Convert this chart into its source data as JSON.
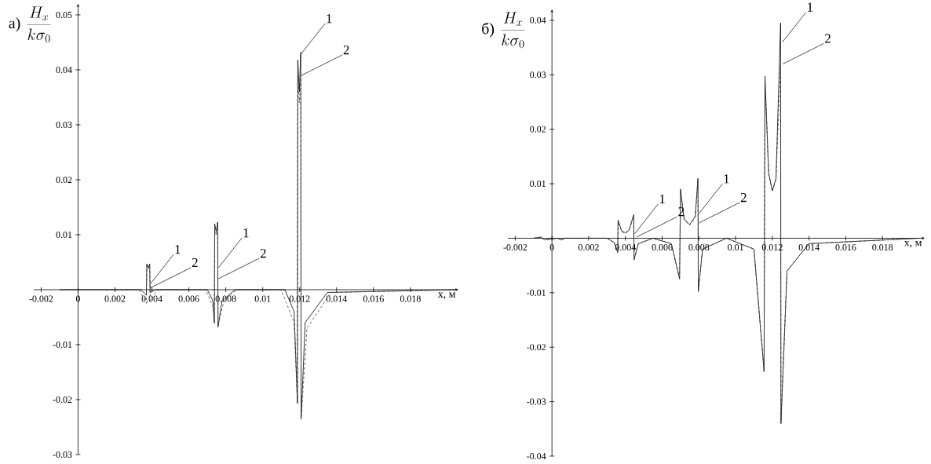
{
  "chart_data": [
    {
      "type": "line",
      "title": "а)",
      "ylabel": "\\frac{H_x}{k\\sigma_0}",
      "xlabel": "x, м",
      "xlim": [
        -0.0024,
        0.0206
      ],
      "ylim": [
        -0.03,
        0.052
      ],
      "xticks": [
        -0.002,
        0,
        0.002,
        0.004,
        0.006,
        0.008,
        0.01,
        0.012,
        0.014,
        0.016,
        0.018
      ],
      "yticks": [
        -0.03,
        -0.02,
        -0.01,
        0.01,
        0.02,
        0.03,
        0.04,
        0.05
      ],
      "series": [
        {
          "color": "#000000",
          "line_style": "solid",
          "x": [
            -0.001,
            0.0034,
            0.0037,
            0.00372,
            0.0038,
            0.00388,
            0.0039,
            0.0042,
            0.007,
            0.0073,
            0.00738,
            0.0074,
            0.00748,
            0.00756,
            0.00758,
            0.0078,
            0.0085,
            0.0112,
            0.0117,
            0.01188,
            0.0119,
            0.01198,
            0.01206,
            0.01208,
            0.0123,
            0.0135,
            0.0205
          ],
          "values": [
            0,
            0,
            -0.001,
            0.0047,
            0.004,
            0.0047,
            -0.0005,
            0,
            0,
            -0.002,
            -0.006,
            0.012,
            0.0105,
            0.0123,
            -0.0068,
            -0.002,
            0,
            0,
            -0.004,
            -0.0207,
            0.0418,
            0.036,
            0.0432,
            -0.0235,
            -0.006,
            -0.0005,
            0
          ]
        },
        {
          "color": "#404040",
          "line_style": "dashed",
          "x": [
            -0.001,
            0.0033,
            0.0037,
            0.00372,
            0.0038,
            0.00388,
            0.0039,
            0.0043,
            0.0069,
            0.0073,
            0.00738,
            0.0074,
            0.00748,
            0.00756,
            0.00758,
            0.0079,
            0.0086,
            0.011,
            0.0117,
            0.01188,
            0.0119,
            0.01198,
            0.01206,
            0.01208,
            0.0124,
            0.0137,
            0.0205
          ],
          "values": [
            0,
            0,
            -0.0025,
            0.0044,
            0.0038,
            0.0044,
            -0.002,
            0,
            0,
            -0.003,
            -0.0062,
            0.0115,
            0.0098,
            0.0115,
            -0.0065,
            -0.002,
            0,
            0,
            -0.006,
            -0.0205,
            0.039,
            0.034,
            0.039,
            -0.0235,
            -0.007,
            -0.0005,
            0
          ]
        }
      ],
      "annotations": [
        {
          "text": "1",
          "x": 0.0039,
          "y": 0.001
        },
        {
          "text": "2",
          "x": 0.0039,
          "y": 0.0003
        },
        {
          "text": "1",
          "x": 0.0076,
          "y": 0.004
        },
        {
          "text": "2",
          "x": 0.0076,
          "y": 0.002
        },
        {
          "text": "1",
          "x": 0.0121,
          "y": 0.043
        },
        {
          "text": "2",
          "x": 0.0121,
          "y": 0.039
        }
      ]
    },
    {
      "type": "line",
      "title": "б)",
      "ylabel": "\\frac{H_x}{k\\sigma_0}",
      "xlabel": "x, м",
      "xlim": [
        -0.0024,
        0.0203
      ],
      "ylim": [
        -0.04,
        0.042
      ],
      "xticks": [
        -0.002,
        0,
        0.002,
        0.004,
        0.006,
        0.008,
        0.01,
        0.012,
        0.014,
        0.016,
        0.018
      ],
      "yticks": [
        -0.04,
        -0.03,
        -0.02,
        -0.01,
        0.01,
        0.02,
        0.03,
        0.04
      ],
      "series": [
        {
          "color": "#000000",
          "line_style": "solid",
          "x": [
            -0.001,
            -0.0006,
            -0.0004,
            0.0003,
            0.0005,
            0.0007,
            0.003,
            0.0034,
            0.00358,
            0.0036,
            0.0038,
            0.004,
            0.0042,
            0.00445,
            0.00447,
            0.0047,
            0.0055,
            0.0065,
            0.00695,
            0.007,
            0.0072,
            0.0075,
            0.0078,
            0.00795,
            0.00797,
            0.0082,
            0.0095,
            0.011,
            0.01155,
            0.0116,
            0.0118,
            0.012,
            0.0122,
            0.01245,
            0.01247,
            0.0128,
            0.014,
            0.02
          ],
          "values": [
            0,
            0.0002,
            -0.0003,
            0,
            -0.0003,
            0,
            0,
            -0.0008,
            -0.0025,
            0.0033,
            0.0013,
            0.001,
            0.0015,
            0.0043,
            -0.004,
            -0.001,
            0,
            -0.001,
            -0.0075,
            0.009,
            0.0035,
            0.0025,
            0.004,
            0.011,
            -0.0098,
            -0.002,
            0,
            -0.002,
            -0.0245,
            0.0297,
            0.012,
            0.0087,
            0.011,
            0.0395,
            -0.034,
            -0.006,
            -0.001,
            0
          ]
        },
        {
          "color": "#404040",
          "line_style": "dashed",
          "x": [
            -0.001,
            -0.0006,
            -0.0004,
            0.0003,
            0.0005,
            0.0007,
            0.003,
            0.0034,
            0.00358,
            0.0036,
            0.0038,
            0.004,
            0.0042,
            0.00445,
            0.00447,
            0.0047,
            0.0055,
            0.0065,
            0.00695,
            0.007,
            0.0072,
            0.0075,
            0.0078,
            0.00795,
            0.00797,
            0.0082,
            0.0095,
            0.011,
            0.01155,
            0.0116,
            0.0118,
            0.012,
            0.0122,
            0.01245,
            0.01247,
            0.0128,
            0.014,
            0.02
          ],
          "values": [
            0,
            0.0002,
            -0.0003,
            0,
            -0.0003,
            0,
            0,
            -0.0009,
            -0.0027,
            0.003,
            0.0012,
            0.0009,
            0.0014,
            0.004,
            -0.0038,
            -0.001,
            0,
            -0.001,
            -0.0072,
            0.0085,
            0.0033,
            0.0024,
            0.0038,
            0.0105,
            -0.0095,
            -0.002,
            0,
            -0.002,
            -0.024,
            0.0295,
            0.0118,
            0.0086,
            0.0108,
            0.0318,
            -0.034,
            -0.006,
            -0.001,
            0
          ]
        }
      ],
      "annotations": [
        {
          "text": "1",
          "x": 0.0045,
          "y": 0.0008
        },
        {
          "text": "2",
          "x": 0.0046,
          "y": 0.0002
        },
        {
          "text": "1",
          "x": 0.008,
          "y": 0.0045
        },
        {
          "text": "2",
          "x": 0.008,
          "y": 0.0028
        },
        {
          "text": "1",
          "x": 0.01255,
          "y": 0.036
        },
        {
          "text": "2",
          "x": 0.01258,
          "y": 0.032
        }
      ]
    }
  ]
}
